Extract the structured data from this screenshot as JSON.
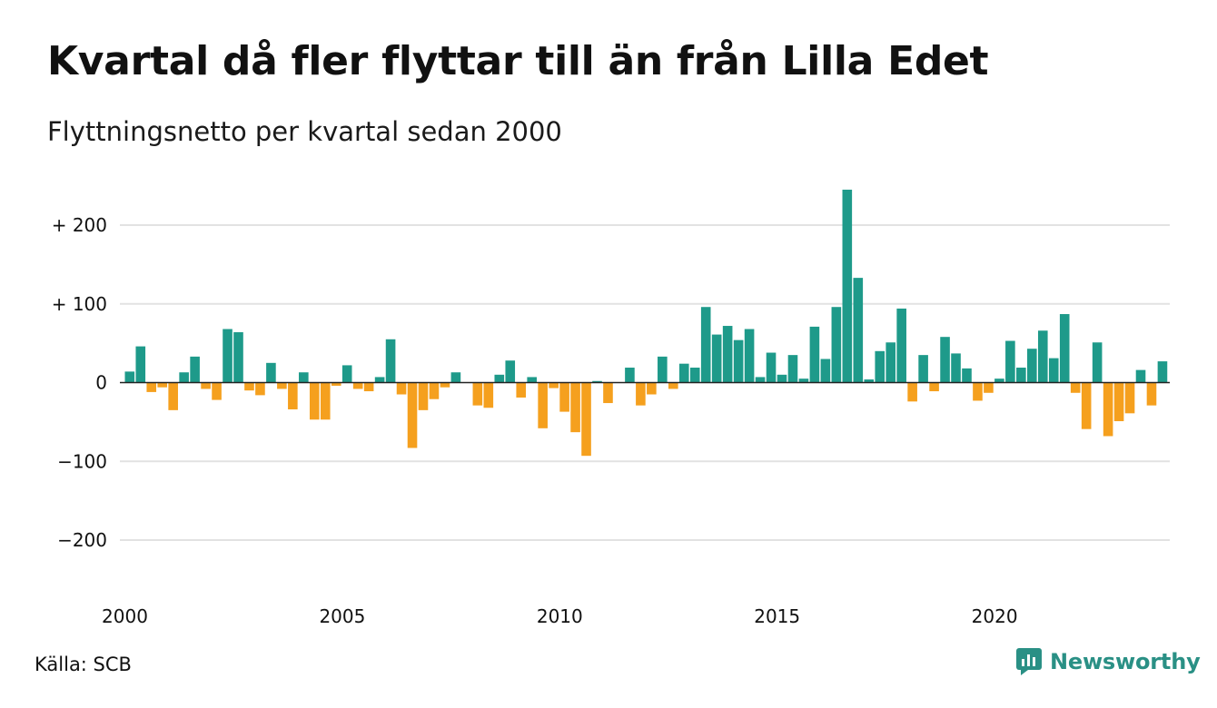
{
  "header": {
    "title": "Kvartal då fler flyttar till än från Lilla Edet",
    "subtitle": "Flyttningsnetto per kvartal sedan 2000"
  },
  "footer": {
    "source": "Källa: SCB",
    "brand": "Newsworthy"
  },
  "colors": {
    "positive": "#1e9a8a",
    "negative": "#f5a01e",
    "grid": "#e2e2e2",
    "zero_line": "#222222",
    "brand": "#2a9085"
  },
  "icons": {
    "brand_logo": "bar-chart-speech-bubble-icon"
  },
  "chart_data": {
    "type": "bar",
    "title": "Kvartal då fler flyttar till än från Lilla Edet",
    "subtitle": "Flyttningsnetto per kvartal sedan 2000",
    "xlabel": "",
    "ylabel": "",
    "ylim": [
      -260,
      250
    ],
    "grid": true,
    "y_ticks": [
      200,
      100,
      0,
      -100,
      -200
    ],
    "y_tick_labels": [
      "+ 200",
      "+ 100",
      "0",
      "−100",
      "−200"
    ],
    "x_tick_labels": [
      "2000",
      "2005",
      "2010",
      "2015",
      "2020"
    ],
    "start": "2000 Q1",
    "frequency": "quarter",
    "values": [
      14,
      46,
      -12,
      -6,
      -35,
      13,
      33,
      -8,
      -22,
      68,
      64,
      -10,
      -16,
      25,
      -8,
      -34,
      13,
      -47,
      -47,
      -4,
      22,
      -8,
      -11,
      7,
      55,
      -15,
      -83,
      -35,
      -21,
      -6,
      13,
      0,
      -29,
      -32,
      10,
      28,
      -19,
      7,
      -58,
      -7,
      -37,
      -63,
      -93,
      2,
      -26,
      0,
      19,
      -29,
      -15,
      33,
      -8,
      24,
      19,
      96,
      61,
      72,
      54,
      68,
      7,
      38,
      10,
      35,
      5,
      71,
      30,
      96,
      245,
      133,
      4,
      40,
      51,
      94,
      -24,
      35,
      -11,
      58,
      37,
      18,
      -23,
      -13,
      5,
      53,
      19,
      43,
      66,
      31,
      87,
      -13,
      -59,
      51,
      -68,
      -49,
      -39,
      16,
      -29,
      27
    ],
    "color_rule": "positive values teal, negative values orange"
  }
}
